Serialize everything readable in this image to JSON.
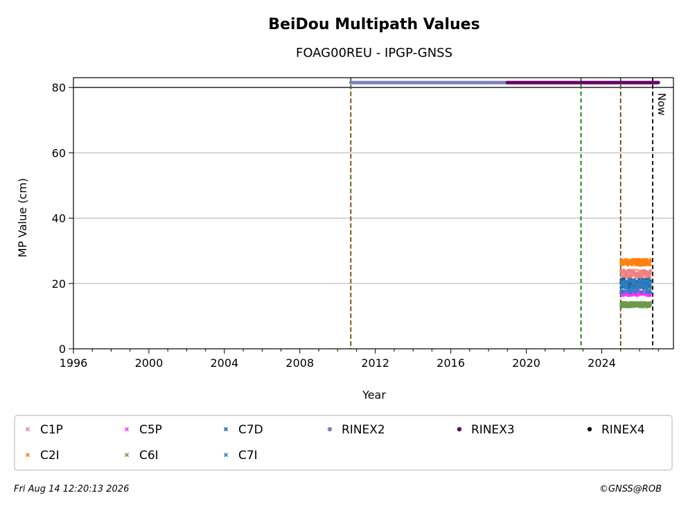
{
  "chart_data": {
    "type": "scatter",
    "title": "BeiDou Multipath Values",
    "subtitle": "FOAG00REU - IPGP-GNSS",
    "xlabel": "Year",
    "ylabel": "MP Value (cm)",
    "xlim": [
      1996.0,
      2027.8
    ],
    "ylim": [
      0,
      83
    ],
    "x_ticks": [
      "1996",
      "2000",
      "2004",
      "2008",
      "2012",
      "2016",
      "2020",
      "2024"
    ],
    "y_ticks": [
      "0",
      "20",
      "40",
      "60",
      "80"
    ],
    "grid": "y",
    "series": [
      {
        "name": "C1P",
        "color": "#f08080",
        "marker": "x",
        "x_range": [
          2025.0,
          2026.6
        ],
        "center": 23,
        "spread": 1.2
      },
      {
        "name": "C2I",
        "color": "#ff7f0e",
        "marker": "x",
        "x_range": [
          2025.0,
          2026.6
        ],
        "center": 26.5,
        "spread": 1.0
      },
      {
        "name": "C5P",
        "color": "#ff33ff",
        "marker": "x",
        "x_range": [
          2025.0,
          2026.6
        ],
        "center": 17,
        "spread": 0.8
      },
      {
        "name": "C6I",
        "color": "#6b9a4c",
        "marker": "x",
        "x_range": [
          2025.0,
          2026.6
        ],
        "center": 13.5,
        "spread": 0.8
      },
      {
        "name": "C7D",
        "color": "#1f5f9e",
        "marker": "x",
        "x_range": [
          2025.0,
          2026.6
        ],
        "center": 20,
        "spread": 1.5
      },
      {
        "name": "C7I",
        "color": "#2f7fc1",
        "marker": "x",
        "x_range": [
          2025.0,
          2026.6
        ],
        "center": 19,
        "spread": 2.0
      },
      {
        "name": "RINEX2",
        "color": "#8080c0",
        "marker": "o",
        "x_range": [
          2010.7,
          2019.0
        ],
        "y": 81.5
      },
      {
        "name": "RINEX3",
        "color": "#660066",
        "marker": "o",
        "x_range": [
          2019.0,
          2027.0
        ],
        "y": 81.5
      },
      {
        "name": "RINEX4",
        "color": "#1a0a1a",
        "marker": "o",
        "x_range": [],
        "y": 81.5
      }
    ],
    "reference_line_y": 80,
    "vertical_lines": [
      {
        "x": 2010.7,
        "style": "green-red-dashed"
      },
      {
        "x": 2022.9,
        "style": "green-dashed"
      },
      {
        "x": 2025.0,
        "style": "green-red-dashed"
      },
      {
        "x": 2026.7,
        "style": "black-dashed",
        "label": "Now"
      }
    ],
    "legend_placement": "bottom"
  },
  "footer": {
    "timestamp": "Fri Aug 14 12:20:13 2026",
    "credit": "©GNSS@ROB"
  }
}
